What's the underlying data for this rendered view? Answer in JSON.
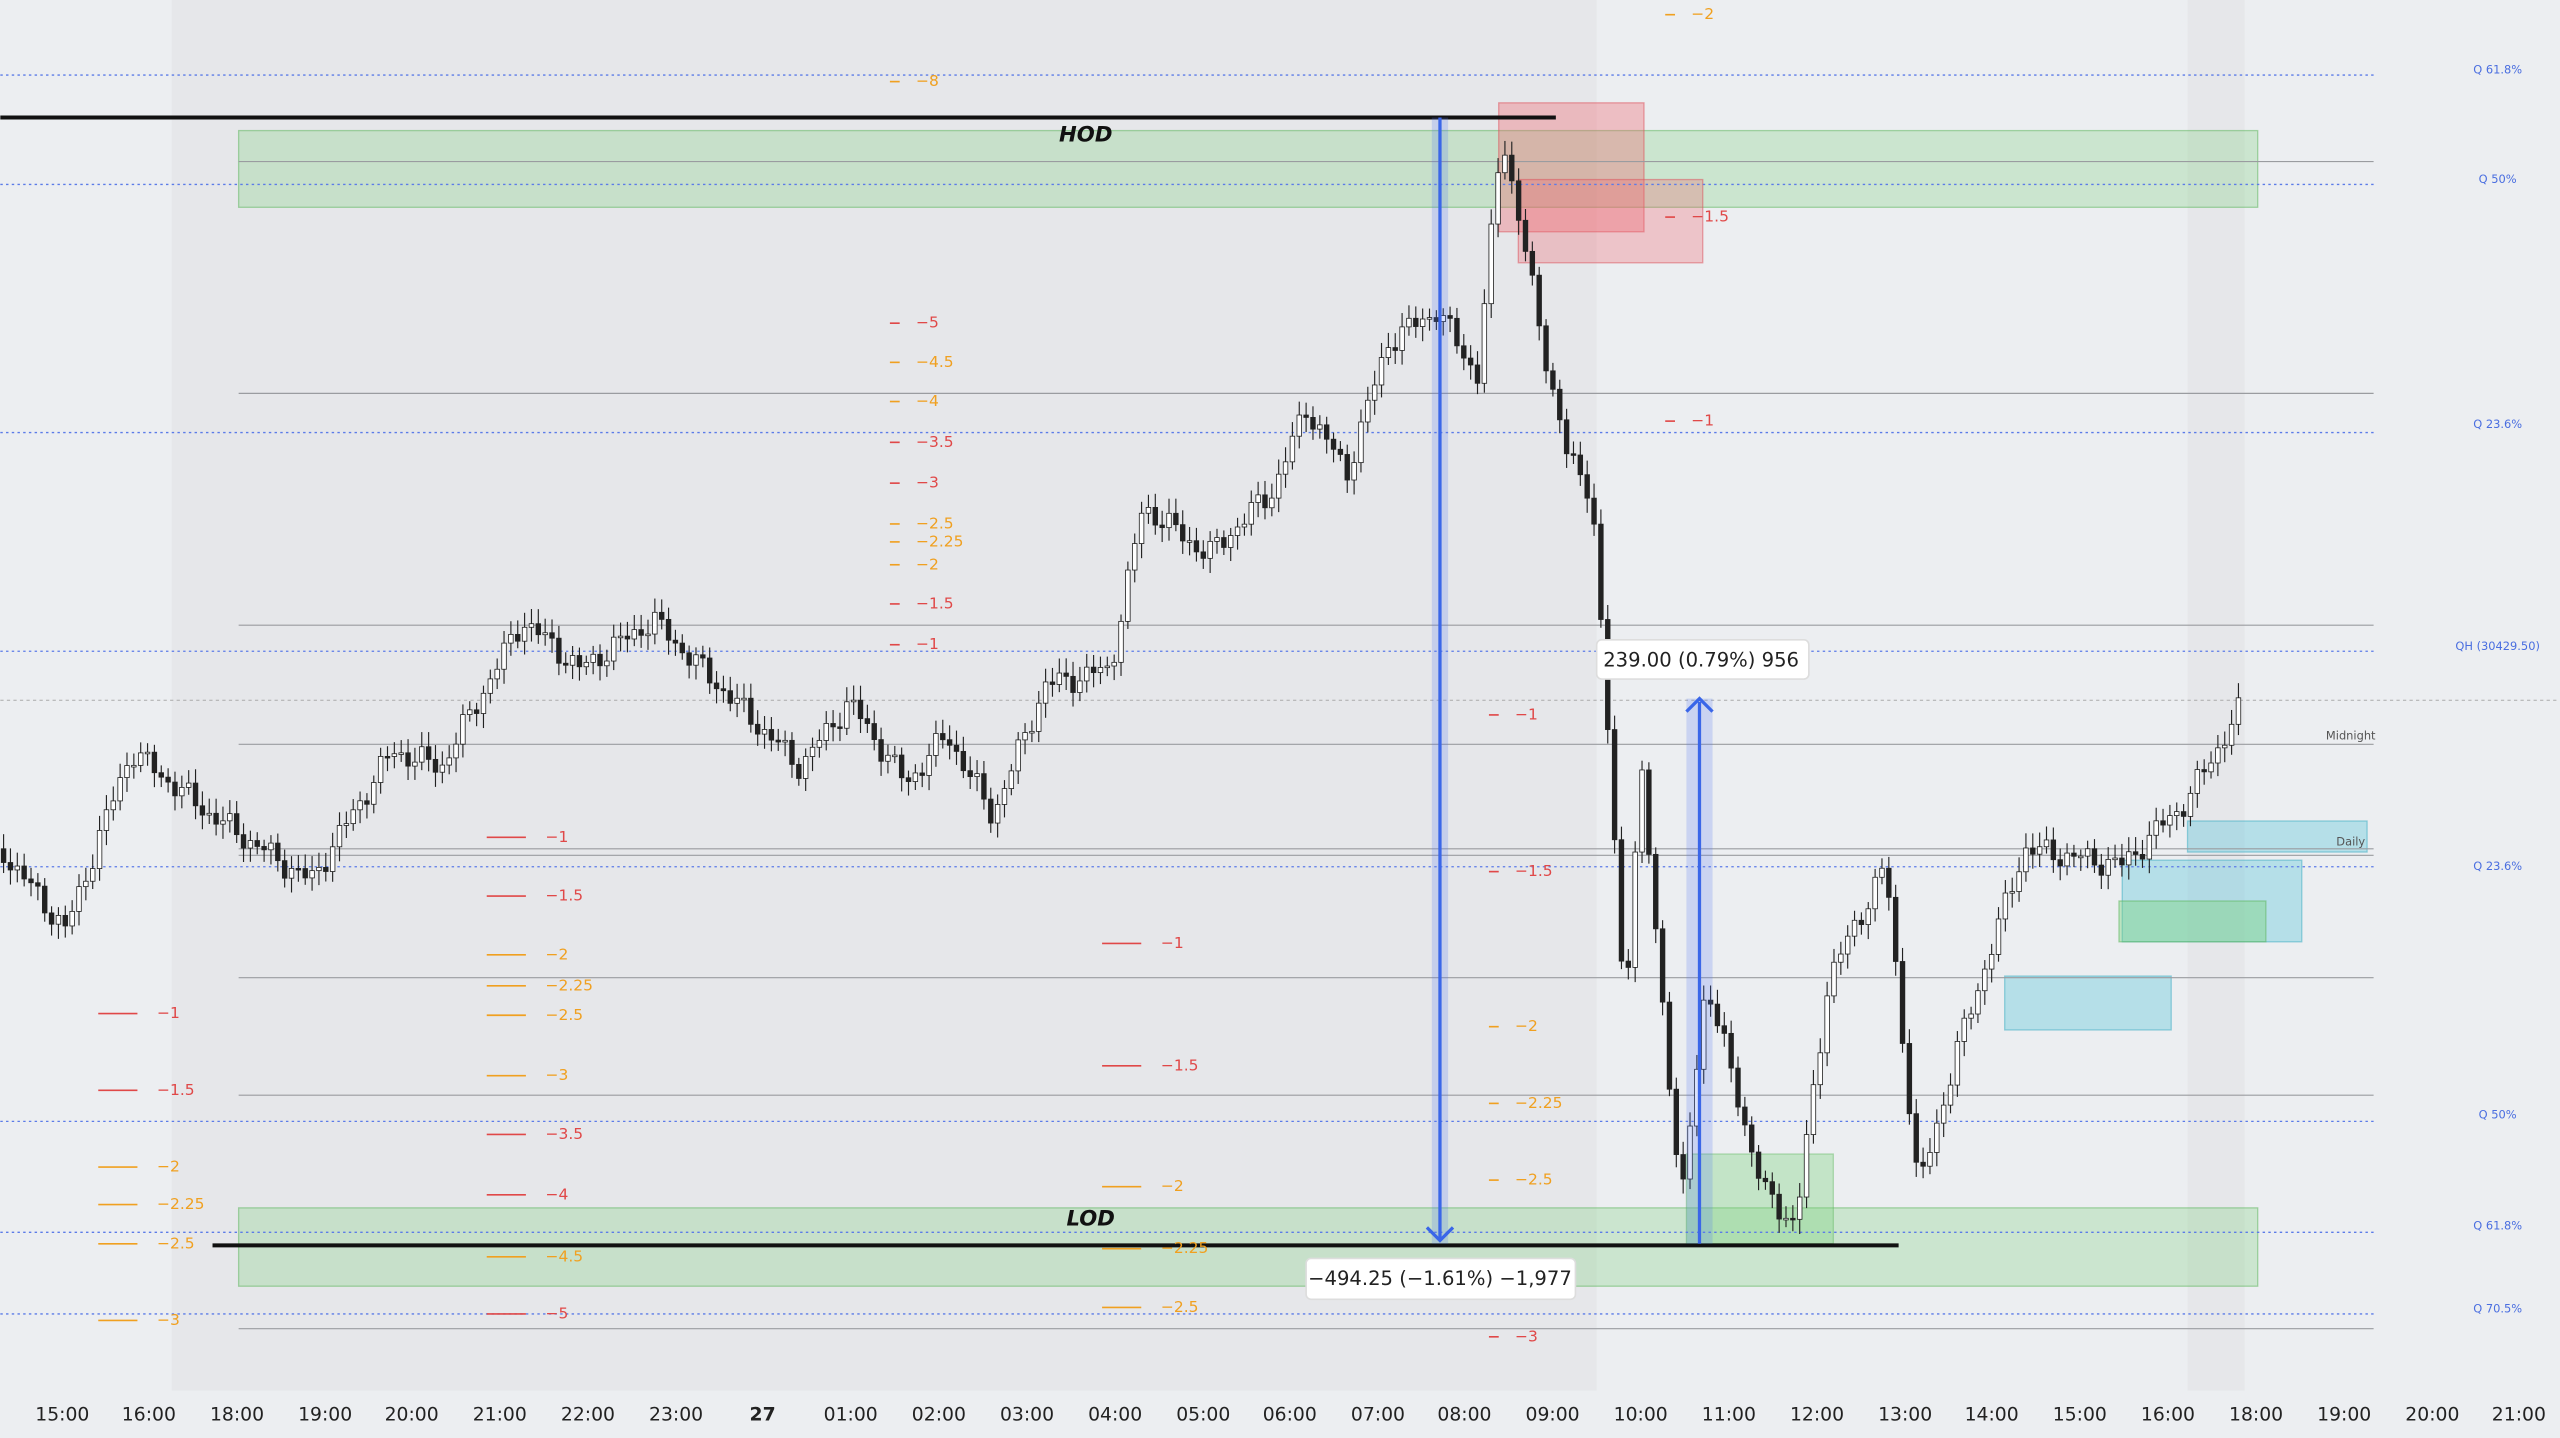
{
  "x_axis": {
    "labels": [
      "15:00",
      "16:00",
      "18:00",
      "19:00",
      "20:00",
      "21:00",
      "22:00",
      "23:00",
      "27",
      "01:00",
      "02:00",
      "03:00",
      "04:00",
      "05:00",
      "06:00",
      "07:00",
      "08:00",
      "09:00",
      "10:00",
      "11:00",
      "12:00",
      "13:00",
      "14:00",
      "15:00",
      "16:00",
      "18:00",
      "19:00",
      "20:00",
      "21:00"
    ]
  },
  "annotations": {
    "hod": "HOD",
    "lod": "LOD",
    "measure_up": "239.00 (0.79%) 956",
    "measure_down": "−494.25 (−1.61%) −1,977"
  },
  "right_labels": [
    "Q 61.8%",
    "Q 50%",
    "Q 23.6%",
    "QH (30429.50)",
    "Midnight",
    "Daily",
    "Q 23.6%",
    "Q 50%",
    "Q 61.8%",
    "Q 70.5%"
  ],
  "level_groups": [
    [
      "−8",
      "−5",
      "−4.5",
      "−4",
      "−3.5",
      "−3",
      "−2.5",
      "−2.25",
      "−2",
      "−1.5",
      "−1"
    ],
    [
      "−2",
      "−1.5",
      "−1"
    ],
    [
      "−1",
      "−1.5",
      "−2",
      "−2.25",
      "−2.5",
      "−3",
      "−3.5",
      "−4",
      "−4.5",
      "−5"
    ],
    [
      "−1",
      "−1.5",
      "−2",
      "−2.25",
      "−2.5",
      "−3"
    ],
    [
      "−1",
      "−1.5",
      "−2",
      "−2.25",
      "−2.5"
    ],
    [
      "−1",
      "−1.5",
      "−2",
      "−2.25",
      "−2.5",
      "−3"
    ]
  ]
}
